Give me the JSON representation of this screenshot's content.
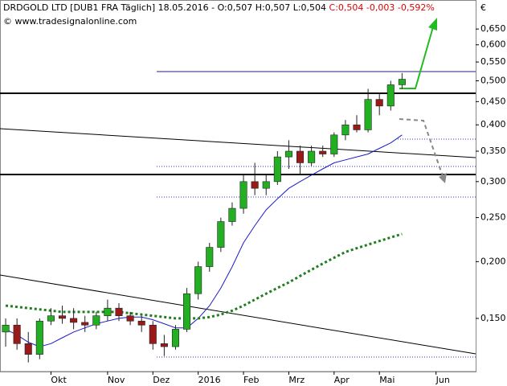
{
  "chart_data": {
    "type": "candlestick",
    "title": "DRDGOLD LTD [DUB1 FRA  Täglich] 18.05.2016 - O:0,507 H:0,507 L:0,504",
    "title_change": "C:0,504 -0,003 -0,592%",
    "subtitle": "© www.tradesignalonline.com",
    "currency": "€",
    "log_y": true,
    "up_color": "#22b022",
    "down_color": "#9a1a1a",
    "categories": [
      null,
      null,
      null,
      null,
      "Okt",
      null,
      null,
      null,
      null,
      "Nov",
      null,
      null,
      null,
      "Dez",
      null,
      null,
      null,
      "2016",
      null,
      null,
      null,
      "Feb",
      null,
      null,
      null,
      "Mrz",
      null,
      null,
      null,
      "Apr",
      null,
      null,
      null,
      "Mai",
      null,
      null,
      null,
      null,
      "Jun",
      null,
      null,
      null
    ],
    "open": [
      0.14,
      0.145,
      0.132,
      0.125,
      0.148,
      0.152,
      0.15,
      0.147,
      0.145,
      0.152,
      0.158,
      0.152,
      0.148,
      0.145,
      0.132,
      0.13,
      0.142,
      0.17,
      0.195,
      0.215,
      0.245,
      0.262,
      0.3,
      0.29,
      0.3,
      0.34,
      0.35,
      0.33,
      0.35,
      0.345,
      0.38,
      0.4,
      0.39,
      0.455,
      0.44,
      0.49,
      null,
      null,
      null,
      null,
      null,
      null
    ],
    "high": [
      0.15,
      0.15,
      0.14,
      0.15,
      0.158,
      0.16,
      0.158,
      0.152,
      0.155,
      0.165,
      0.162,
      0.155,
      0.152,
      0.148,
      0.138,
      0.145,
      0.175,
      0.2,
      0.22,
      0.25,
      0.27,
      0.31,
      0.33,
      0.31,
      0.35,
      0.37,
      0.36,
      0.36,
      0.36,
      0.385,
      0.41,
      0.42,
      0.48,
      0.47,
      0.5,
      0.52,
      null,
      null,
      null,
      null,
      null,
      null
    ],
    "low": [
      0.13,
      0.128,
      0.12,
      0.122,
      0.145,
      0.146,
      0.142,
      0.14,
      0.142,
      0.148,
      0.148,
      0.145,
      0.14,
      0.128,
      0.124,
      0.128,
      0.14,
      0.165,
      0.19,
      0.21,
      0.24,
      0.255,
      0.28,
      0.28,
      0.295,
      0.32,
      0.31,
      0.325,
      0.34,
      0.34,
      0.37,
      0.385,
      0.385,
      0.42,
      0.43,
      0.48,
      null,
      null,
      null,
      null,
      null,
      null
    ],
    "close": [
      0.145,
      0.132,
      0.125,
      0.148,
      0.152,
      0.15,
      0.147,
      0.145,
      0.152,
      0.158,
      0.152,
      0.148,
      0.145,
      0.132,
      0.13,
      0.142,
      0.17,
      0.195,
      0.215,
      0.245,
      0.262,
      0.3,
      0.29,
      0.3,
      0.34,
      0.35,
      0.33,
      0.35,
      0.345,
      0.38,
      0.4,
      0.39,
      0.455,
      0.44,
      0.49,
      0.504,
      null,
      null,
      null,
      null,
      null,
      null
    ],
    "series": [
      {
        "color": "#1c1ccc",
        "style": "solid",
        "values": [
          0.142,
          0.138,
          0.133,
          0.13,
          0.132,
          0.136,
          0.14,
          0.143,
          0.146,
          0.148,
          0.15,
          0.151,
          0.151,
          0.149,
          0.146,
          0.143,
          0.143,
          0.15,
          0.16,
          0.175,
          0.195,
          0.22,
          0.24,
          0.26,
          0.275,
          0.29,
          0.3,
          0.31,
          0.32,
          0.33,
          0.335,
          0.34,
          0.345,
          0.355,
          0.365,
          0.38,
          null,
          null,
          null,
          null,
          null,
          null
        ]
      },
      {
        "color": "#1f7f1f",
        "style": "dotted",
        "values": [
          0.16,
          0.159,
          0.158,
          0.157,
          0.156,
          0.155,
          0.155,
          0.155,
          0.155,
          0.155,
          0.155,
          0.154,
          0.153,
          0.152,
          0.151,
          0.15,
          0.15,
          0.15,
          0.151,
          0.153,
          0.156,
          0.16,
          0.165,
          0.17,
          0.175,
          0.18,
          0.186,
          0.192,
          0.198,
          0.204,
          0.21,
          0.214,
          0.218,
          0.222,
          0.226,
          0.23,
          null,
          null,
          null,
          null,
          null,
          null
        ]
      }
    ],
    "ylim": [
      0.1146,
      0.753
    ],
    "yticks": [
      {
        "value": 0.15,
        "label": "0,150"
      },
      {
        "value": 0.2,
        "label": "0,200"
      },
      {
        "value": 0.25,
        "label": "0,250"
      },
      {
        "value": 0.3,
        "label": "0,300"
      },
      {
        "value": 0.35,
        "label": "0,350"
      },
      {
        "value": 0.4,
        "label": "0,400"
      },
      {
        "value": 0.45,
        "label": "0,450"
      },
      {
        "value": 0.5,
        "label": "0,500"
      },
      {
        "value": 0.55,
        "label": "0,550"
      },
      {
        "value": 0.6,
        "label": "0,600"
      },
      {
        "value": 0.65,
        "label": "0,650"
      }
    ]
  }
}
